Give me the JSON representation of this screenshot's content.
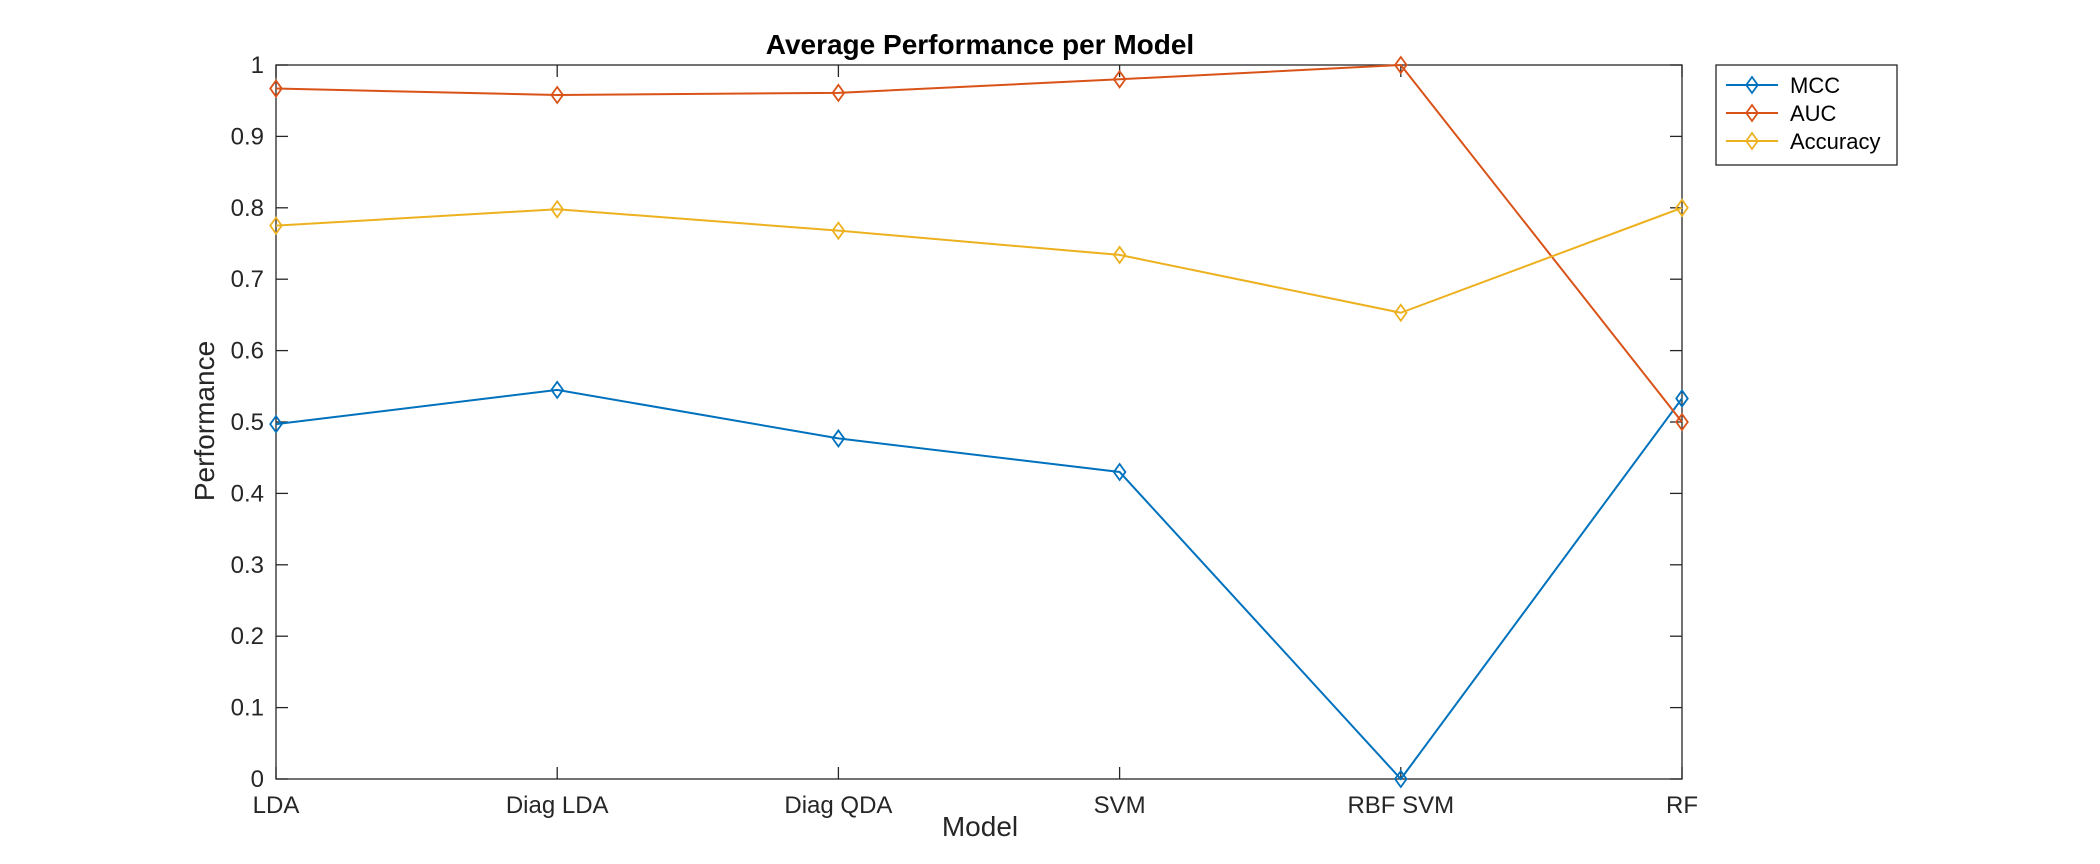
{
  "chart_data": {
    "type": "line",
    "title": "Average Performance per Model",
    "xlabel": "Model",
    "ylabel": "Performance",
    "categories": [
      "LDA",
      "Diag LDA",
      "Diag QDA",
      "SVM",
      "RBF SVM",
      "RF"
    ],
    "ylim": [
      0,
      1
    ],
    "yticks": [
      "0",
      "0.1",
      "0.2",
      "0.3",
      "0.4",
      "0.5",
      "0.6",
      "0.7",
      "0.8",
      "0.9",
      "1"
    ],
    "grid": false,
    "legend_position": "outside-top-right",
    "marker": "diamond",
    "series": [
      {
        "name": "MCC",
        "color": "#0072BD",
        "values": [
          0.497,
          0.545,
          0.477,
          0.43,
          0.0,
          0.533
        ]
      },
      {
        "name": "AUC",
        "color": "#D95319",
        "values": [
          0.967,
          0.958,
          0.961,
          0.98,
          1.0,
          0.5
        ]
      },
      {
        "name": "Accuracy",
        "color": "#EDB120",
        "values": [
          0.775,
          0.798,
          0.768,
          0.734,
          0.653,
          0.8
        ]
      }
    ]
  }
}
